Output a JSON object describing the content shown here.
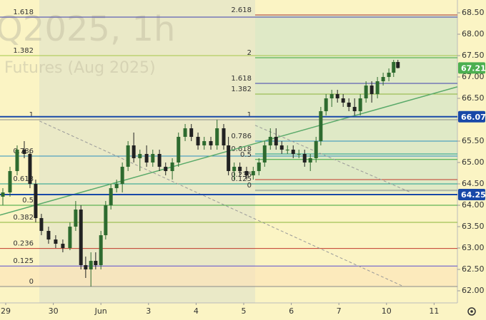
{
  "chart_data": {
    "type": "candlestick",
    "watermark": "Q2025, 1h",
    "watermark_sub": "Futures (Aug 2025)",
    "xlim": [
      -0.12,
      9.49
    ],
    "ylim": [
      61.717,
      68.8
    ],
    "xticks": [
      {
        "value": 0,
        "label": "29"
      },
      {
        "value": 1,
        "label": "30"
      },
      {
        "value": 2,
        "label": "Jun"
      },
      {
        "value": 3,
        "label": "3"
      },
      {
        "value": 4,
        "label": "4"
      },
      {
        "value": 5,
        "label": "5"
      },
      {
        "value": 6,
        "label": "6"
      },
      {
        "value": 7,
        "label": "7"
      },
      {
        "value": 8,
        "label": "10"
      },
      {
        "value": 9,
        "label": "11"
      }
    ],
    "yticks": [
      {
        "value": 62,
        "label": "62.00"
      },
      {
        "value": 62.5,
        "label": "62.50"
      },
      {
        "value": 63,
        "label": "63.00"
      },
      {
        "value": 63.5,
        "label": "63.50"
      },
      {
        "value": 64,
        "label": "64.00"
      },
      {
        "value": 64.5,
        "label": "64.50"
      },
      {
        "value": 65,
        "label": "65.00"
      },
      {
        "value": 65.5,
        "label": "65.50"
      },
      {
        "value": 66,
        "label": "66.00"
      },
      {
        "value": 66.5,
        "label": "66.50"
      },
      {
        "value": 67,
        "label": "67.00"
      },
      {
        "value": 67.5,
        "label": "67.50"
      },
      {
        "value": 68,
        "label": "68.00"
      },
      {
        "value": 68.5,
        "label": "68.50"
      }
    ],
    "up_color": "#2e6b2f",
    "down_color": "#222222",
    "x": [
      -0.06,
      0.09,
      0.24,
      0.39,
      0.51,
      0.63,
      0.75,
      0.9,
      1.05,
      1.2,
      1.35,
      1.47,
      1.58,
      1.68,
      1.79,
      1.89,
      2.0,
      2.1,
      2.21,
      2.33,
      2.45,
      2.57,
      2.69,
      2.82,
      2.96,
      3.09,
      3.23,
      3.36,
      3.5,
      3.63,
      3.77,
      3.9,
      4.04,
      4.17,
      4.31,
      4.44,
      4.58,
      4.68,
      4.8,
      4.92,
      5.06,
      5.2,
      5.32,
      5.44,
      5.56,
      5.68,
      5.8,
      5.92,
      6.04,
      6.16,
      6.28,
      6.4,
      6.52,
      6.62,
      6.73,
      6.85,
      6.97,
      7.09,
      7.21,
      7.33,
      7.45,
      7.57,
      7.69,
      7.81,
      7.93,
      8.05,
      8.15,
      8.24
    ],
    "open": [
      64.2,
      64.3,
      64.8,
      65.3,
      65.2,
      64.5,
      63.7,
      63.4,
      63.2,
      63.1,
      63.0,
      63.5,
      63.9,
      62.6,
      62.5,
      62.7,
      62.6,
      63.3,
      64.0,
      64.4,
      64.5,
      64.9,
      65.4,
      65.1,
      65.2,
      65.0,
      65.2,
      64.9,
      64.8,
      65.0,
      65.6,
      65.8,
      65.6,
      65.4,
      65.5,
      65.4,
      65.8,
      65.4,
      64.8,
      64.9,
      64.8,
      64.7,
      64.8,
      65.0,
      65.4,
      65.6,
      65.4,
      65.3,
      65.3,
      65.2,
      65.2,
      65.0,
      65.1,
      65.5,
      66.2,
      66.5,
      66.6,
      66.5,
      66.4,
      66.3,
      66.2,
      66.5,
      66.8,
      66.6,
      66.9,
      67.0,
      67.1,
      67.35
    ],
    "high": [
      64.4,
      64.9,
      65.4,
      65.5,
      65.3,
      64.6,
      63.8,
      63.5,
      63.3,
      63.2,
      63.6,
      64.1,
      64.0,
      62.8,
      62.9,
      62.9,
      63.4,
      64.1,
      64.5,
      64.6,
      65.0,
      65.5,
      65.7,
      65.3,
      65.4,
      65.3,
      65.3,
      65.0,
      65.1,
      65.7,
      65.9,
      65.9,
      65.7,
      65.6,
      65.6,
      66.0,
      65.9,
      65.6,
      65.0,
      65.0,
      64.9,
      64.9,
      65.1,
      65.5,
      65.8,
      65.8,
      65.5,
      65.4,
      65.4,
      65.3,
      65.3,
      65.2,
      65.6,
      66.3,
      66.6,
      66.7,
      66.7,
      66.6,
      66.5,
      66.5,
      66.6,
      66.9,
      66.9,
      67.0,
      67.1,
      67.2,
      67.4,
      67.4
    ],
    "low": [
      64.0,
      64.2,
      64.7,
      65.1,
      64.4,
      63.6,
      63.3,
      63.1,
      63.0,
      62.9,
      62.95,
      63.4,
      62.5,
      62.3,
      62.1,
      62.5,
      62.5,
      63.2,
      63.9,
      64.3,
      64.3,
      64.8,
      65.0,
      64.8,
      64.9,
      64.9,
      64.8,
      64.7,
      64.6,
      64.9,
      65.5,
      65.5,
      65.3,
      65.3,
      65.3,
      65.3,
      65.3,
      64.7,
      64.6,
      64.7,
      64.6,
      64.6,
      64.7,
      64.9,
      65.3,
      65.3,
      65.2,
      65.2,
      65.1,
      65.1,
      64.9,
      64.8,
      65.0,
      65.4,
      66.1,
      66.3,
      66.4,
      66.3,
      66.2,
      66.1,
      66.1,
      66.4,
      66.4,
      66.5,
      66.8,
      66.9,
      67.0,
      67.2
    ],
    "close": [
      64.3,
      64.8,
      65.3,
      65.2,
      64.5,
      63.7,
      63.4,
      63.2,
      63.1,
      63.0,
      63.5,
      63.9,
      62.6,
      62.5,
      62.7,
      62.6,
      63.3,
      64.0,
      64.4,
      64.5,
      64.9,
      65.4,
      65.1,
      65.2,
      65.0,
      65.2,
      64.9,
      64.8,
      65.0,
      65.6,
      65.8,
      65.6,
      65.4,
      65.5,
      65.4,
      65.8,
      65.4,
      64.8,
      64.9,
      64.8,
      64.7,
      64.8,
      65.0,
      65.4,
      65.6,
      65.4,
      65.3,
      65.3,
      65.2,
      65.2,
      65.0,
      65.1,
      65.5,
      66.2,
      66.5,
      66.6,
      66.5,
      66.4,
      66.3,
      66.2,
      66.5,
      66.8,
      66.6,
      66.9,
      67.0,
      67.1,
      67.35,
      67.21
    ],
    "fib_sets": [
      {
        "start": -0.12,
        "levels": [
          {
            "ratio": 0,
            "price": 62.1,
            "color": "#8a8a8a"
          },
          {
            "ratio": 0.125,
            "price": 62.58,
            "color": "#5a4fcf"
          },
          {
            "ratio": 0.236,
            "price": 62.99,
            "color": "#c0392b"
          },
          {
            "ratio": 0.382,
            "price": 63.6,
            "color": "#8bb33a"
          },
          {
            "ratio": 0.5,
            "price": 64.0,
            "color": "#3aa53a"
          },
          {
            "ratio": 0.618,
            "price": 64.5,
            "color": "#1f9e8e"
          },
          {
            "ratio": 0.786,
            "price": 65.15,
            "color": "#2b8fbf"
          },
          {
            "ratio": 1,
            "price": 66.0,
            "color": "#8a8a8a"
          },
          {
            "ratio": 1.382,
            "price": 67.5,
            "color": "#a5c84a"
          },
          {
            "ratio": 1.618,
            "price": 68.4,
            "color": "#3c3fb0"
          }
        ]
      },
      {
        "start": 5.24,
        "levels": [
          {
            "ratio": 0,
            "price": 64.35,
            "color": "#8a8a8a"
          },
          {
            "ratio": 0.125,
            "price": 64.5,
            "color": "#1f9e8e"
          },
          {
            "ratio": 0.236,
            "price": 64.6,
            "color": "#c0392b"
          },
          {
            "ratio": 0.5,
            "price": 65.07,
            "color": "#3aa53a"
          },
          {
            "ratio": 0.618,
            "price": 65.2,
            "color": "#1f9e8e"
          },
          {
            "ratio": 0.786,
            "price": 65.5,
            "color": "#2b8fbf"
          },
          {
            "ratio": 1,
            "price": 66.0,
            "color": "#8a8a8a"
          },
          {
            "ratio": 1.382,
            "price": 66.6,
            "color": "#8bb33a"
          },
          {
            "ratio": 1.618,
            "price": 66.85,
            "color": "#3c3fb0"
          },
          {
            "ratio": 2,
            "price": 67.45,
            "color": "#3aa53a"
          },
          {
            "ratio": 2.618,
            "price": 68.45,
            "color": "#c0392b"
          }
        ]
      }
    ],
    "lines": [
      {
        "x": [
          -0.12,
          9.49
        ],
        "y": [
          63.77,
          66.77
        ],
        "color": "#5aaa6a",
        "dash": false
      },
      {
        "x": [
          0.71,
          8.36
        ],
        "y": [
          65.97,
          62.1
        ],
        "color": "#999999",
        "dash": true
      },
      {
        "x": [
          5.24,
          8.51
        ],
        "y": [
          65.87,
          64.3
        ],
        "color": "#999999",
        "dash": true
      }
    ],
    "levels": [
      {
        "price": 66.07,
        "color": "#1848a8"
      },
      {
        "price": 64.25,
        "color": "#1848a8"
      }
    ],
    "last_price": 67.21,
    "last_color": "#4caf50"
  }
}
